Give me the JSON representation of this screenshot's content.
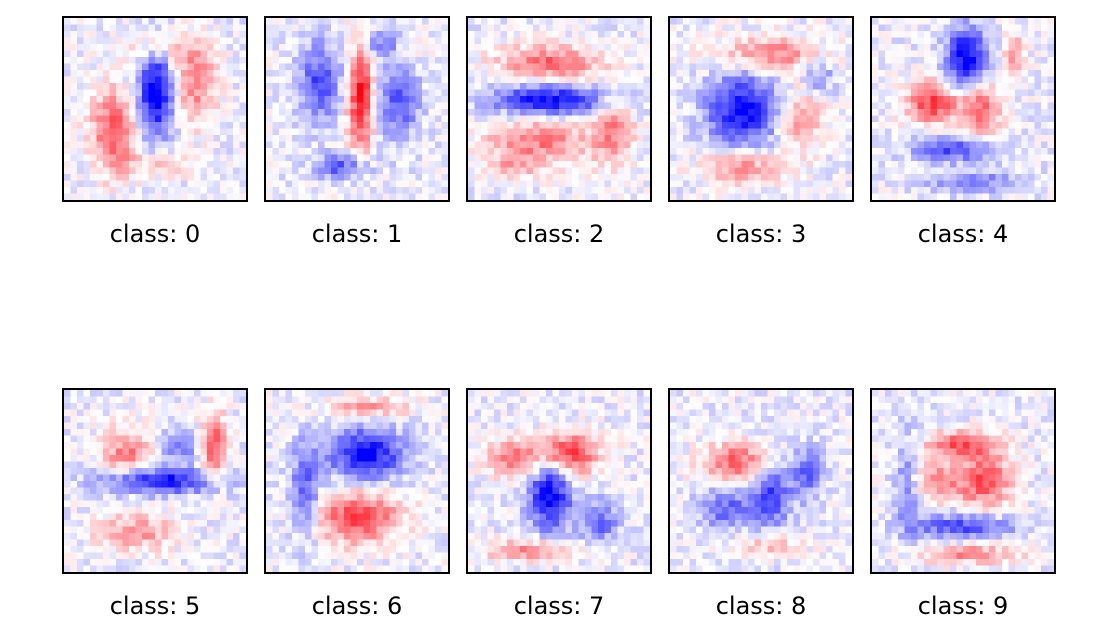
{
  "chart_data": {
    "type": "heatmap",
    "colormap": "seismic",
    "resolution": [
      28,
      28
    ],
    "colors": {
      "negative": "#0000ff",
      "zero": "#ffffff",
      "positive": "#d42020",
      "frame": "#000000"
    },
    "grid": false,
    "panels": [
      {
        "class": 0,
        "label": "class: 0"
      },
      {
        "class": 1,
        "label": "class: 1"
      },
      {
        "class": 2,
        "label": "class: 2"
      },
      {
        "class": 3,
        "label": "class: 3"
      },
      {
        "class": 4,
        "label": "class: 4"
      },
      {
        "class": 5,
        "label": "class: 5"
      },
      {
        "class": 6,
        "label": "class: 6"
      },
      {
        "class": 7,
        "label": "class: 7"
      },
      {
        "class": 8,
        "label": "class: 8"
      },
      {
        "class": 9,
        "label": "class: 9"
      }
    ]
  }
}
